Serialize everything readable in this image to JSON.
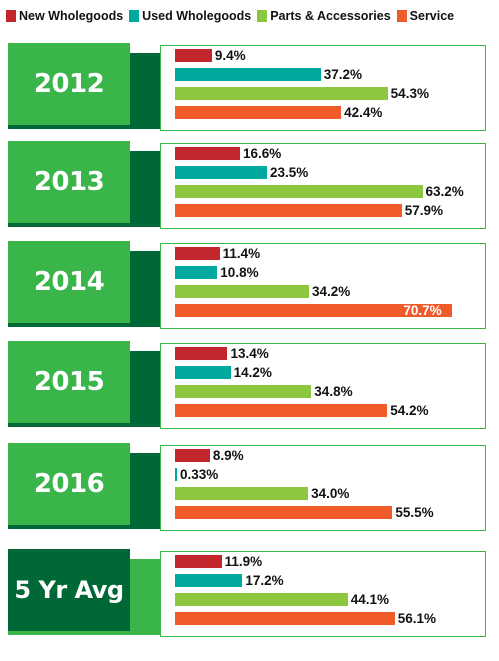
{
  "chart_data": {
    "type": "bar",
    "orientation": "horizontal",
    "legend_position": "top",
    "categories": [
      "2012",
      "2013",
      "2014",
      "2015",
      "2016",
      "5 Yr Avg"
    ],
    "series": [
      {
        "name": "New Wholegoods",
        "color": "#c1272d",
        "values": [
          9.4,
          16.6,
          11.4,
          13.4,
          8.9,
          11.9
        ],
        "labels": [
          "9.4%",
          "16.6%",
          "11.4%",
          "13.4%",
          "8.9%",
          "11.9%"
        ]
      },
      {
        "name": "Used Wholegoods",
        "color": "#00a99d",
        "values": [
          37.2,
          23.5,
          10.8,
          14.2,
          0.33,
          17.2
        ],
        "labels": [
          "37.2%",
          "23.5%",
          "10.8%",
          "14.2%",
          "0.33%",
          "17.2%"
        ]
      },
      {
        "name": "Parts & Accessories",
        "color": "#8dc63f",
        "values": [
          54.3,
          63.2,
          34.2,
          34.8,
          34.0,
          44.1
        ],
        "labels": [
          "54.3%",
          "63.2%",
          "34.2%",
          "34.8%",
          "34.0%",
          "44.1%"
        ]
      },
      {
        "name": "Service",
        "color": "#f15a29",
        "values": [
          42.4,
          57.9,
          70.7,
          54.2,
          55.5,
          56.1
        ],
        "labels": [
          "42.4%",
          "57.9%",
          "70.7%",
          "54.2%",
          "55.5%",
          "56.1%"
        ]
      }
    ],
    "title": "",
    "xlabel": "",
    "ylabel": "",
    "xlim": [
      0,
      72
    ],
    "grid": false
  }
}
